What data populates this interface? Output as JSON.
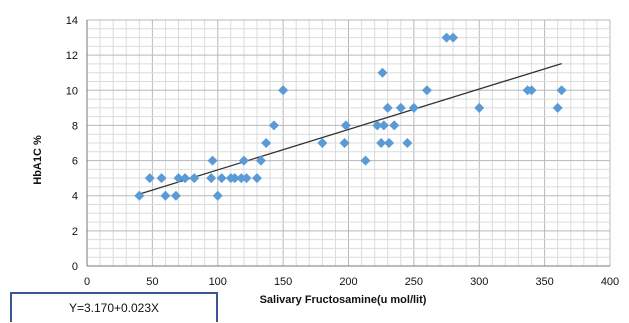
{
  "chart_data": {
    "type": "scatter",
    "title": "",
    "xlabel": "Salivary Fructosamine(u mol/lit)",
    "ylabel": "HbA1C %",
    "xlim": [
      0,
      400
    ],
    "ylim": [
      0,
      14
    ],
    "x_ticks": [
      0,
      50,
      100,
      150,
      200,
      250,
      300,
      350,
      400
    ],
    "y_ticks": [
      0,
      2,
      4,
      6,
      8,
      10,
      12,
      14
    ],
    "grid": true,
    "legend": "none",
    "marker_color": "#5b9bd5",
    "trendline": {
      "equation": "Y=3.170+0.023X",
      "intercept": 3.17,
      "slope": 0.023,
      "x_range": [
        40,
        363
      ],
      "color": "#333333"
    },
    "points": [
      {
        "x": 40,
        "y": 4
      },
      {
        "x": 48,
        "y": 5
      },
      {
        "x": 57,
        "y": 5
      },
      {
        "x": 60,
        "y": 4
      },
      {
        "x": 68,
        "y": 4
      },
      {
        "x": 70,
        "y": 5
      },
      {
        "x": 75,
        "y": 5
      },
      {
        "x": 82,
        "y": 5
      },
      {
        "x": 95,
        "y": 5
      },
      {
        "x": 96,
        "y": 6
      },
      {
        "x": 100,
        "y": 4
      },
      {
        "x": 103,
        "y": 5
      },
      {
        "x": 110,
        "y": 5
      },
      {
        "x": 113,
        "y": 5
      },
      {
        "x": 118,
        "y": 5
      },
      {
        "x": 120,
        "y": 6
      },
      {
        "x": 122,
        "y": 5
      },
      {
        "x": 130,
        "y": 5
      },
      {
        "x": 133,
        "y": 6
      },
      {
        "x": 137,
        "y": 7
      },
      {
        "x": 143,
        "y": 8
      },
      {
        "x": 150,
        "y": 10
      },
      {
        "x": 180,
        "y": 7
      },
      {
        "x": 197,
        "y": 7
      },
      {
        "x": 198,
        "y": 8
      },
      {
        "x": 213,
        "y": 6
      },
      {
        "x": 222,
        "y": 8
      },
      {
        "x": 225,
        "y": 7
      },
      {
        "x": 226,
        "y": 11
      },
      {
        "x": 227,
        "y": 8
      },
      {
        "x": 230,
        "y": 9
      },
      {
        "x": 231,
        "y": 7
      },
      {
        "x": 235,
        "y": 8
      },
      {
        "x": 240,
        "y": 9
      },
      {
        "x": 245,
        "y": 7
      },
      {
        "x": 250,
        "y": 9
      },
      {
        "x": 260,
        "y": 10
      },
      {
        "x": 275,
        "y": 13
      },
      {
        "x": 280,
        "y": 13
      },
      {
        "x": 300,
        "y": 9
      },
      {
        "x": 337,
        "y": 10
      },
      {
        "x": 340,
        "y": 10
      },
      {
        "x": 360,
        "y": 9
      },
      {
        "x": 363,
        "y": 10
      }
    ]
  }
}
